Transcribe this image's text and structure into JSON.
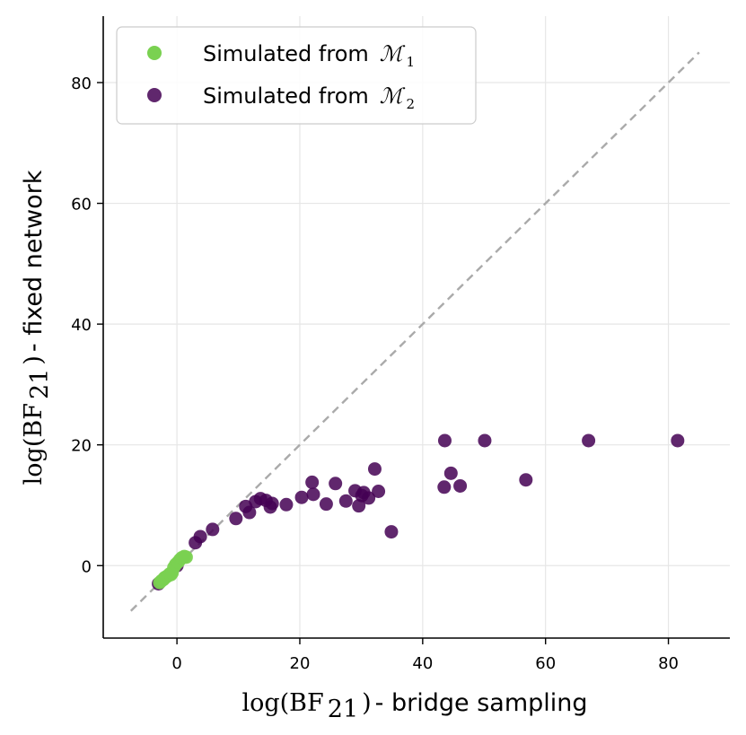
{
  "chart_data": {
    "type": "scatter",
    "xlabel": {
      "math": "log(BF",
      "sub": "21",
      "close": ")",
      "text": " - bridge sampling"
    },
    "ylabel": {
      "math": "log(BF",
      "sub": "21",
      "close": ")",
      "text": " - fixed network"
    },
    "xlim": [
      -12,
      90
    ],
    "ylim": [
      -12,
      91
    ],
    "xticks": [
      0,
      20,
      40,
      60,
      80
    ],
    "yticks": [
      0,
      20,
      40,
      60,
      80
    ],
    "xtick_labels": [
      "0",
      "20",
      "40",
      "60",
      "80"
    ],
    "ytick_labels": [
      "0",
      "20",
      "40",
      "60",
      "80"
    ],
    "grid": true,
    "legend_position": "top-left",
    "reference_line": {
      "style": "dashed",
      "color": "#aaaaaa",
      "from": [
        -7.5,
        -7.5
      ],
      "to": [
        85,
        85
      ]
    },
    "series": [
      {
        "name": "Simulated from",
        "math": "ℳ",
        "sub": "1",
        "color": "#7ad151",
        "points": [
          [
            -2.8,
            -2.8
          ],
          [
            -2.5,
            -2.5
          ],
          [
            -2.2,
            -2.3
          ],
          [
            -2.0,
            -2.0
          ],
          [
            -1.8,
            -1.9
          ],
          [
            -1.5,
            -1.7
          ],
          [
            -1.2,
            -1.4
          ],
          [
            -1.0,
            -1.5
          ],
          [
            -0.8,
            -1.2
          ],
          [
            -0.5,
            -0.3
          ],
          [
            -0.2,
            0.2
          ],
          [
            0.2,
            0.6
          ],
          [
            0.5,
            1.0
          ],
          [
            0.8,
            1.3
          ],
          [
            1.2,
            1.5
          ],
          [
            1.5,
            1.4
          ]
        ]
      },
      {
        "name": "Simulated from",
        "math": "ℳ",
        "sub": "2",
        "color": "#440154",
        "points": [
          [
            -3.0,
            -3.0
          ],
          [
            0.0,
            0.0
          ],
          [
            3.0,
            3.8
          ],
          [
            3.8,
            4.8
          ],
          [
            5.8,
            6.0
          ],
          [
            9.6,
            7.8
          ],
          [
            11.2,
            9.8
          ],
          [
            11.8,
            8.8
          ],
          [
            12.8,
            10.6
          ],
          [
            13.6,
            11.1
          ],
          [
            14.5,
            10.8
          ],
          [
            15.2,
            9.7
          ],
          [
            15.5,
            10.3
          ],
          [
            17.8,
            10.1
          ],
          [
            20.3,
            11.3
          ],
          [
            22.0,
            13.8
          ],
          [
            22.2,
            11.8
          ],
          [
            24.3,
            10.2
          ],
          [
            25.8,
            13.6
          ],
          [
            27.5,
            10.7
          ],
          [
            29.0,
            12.4
          ],
          [
            29.6,
            9.9
          ],
          [
            30.1,
            11.6
          ],
          [
            30.4,
            12.1
          ],
          [
            31.2,
            11.2
          ],
          [
            32.2,
            16.0
          ],
          [
            32.8,
            12.3
          ],
          [
            34.9,
            5.6
          ],
          [
            43.5,
            13.0
          ],
          [
            43.6,
            20.7
          ],
          [
            44.6,
            15.3
          ],
          [
            46.1,
            13.2
          ],
          [
            50.1,
            20.7
          ],
          [
            56.8,
            14.2
          ],
          [
            67.0,
            20.7
          ],
          [
            81.5,
            20.7
          ]
        ]
      }
    ]
  }
}
